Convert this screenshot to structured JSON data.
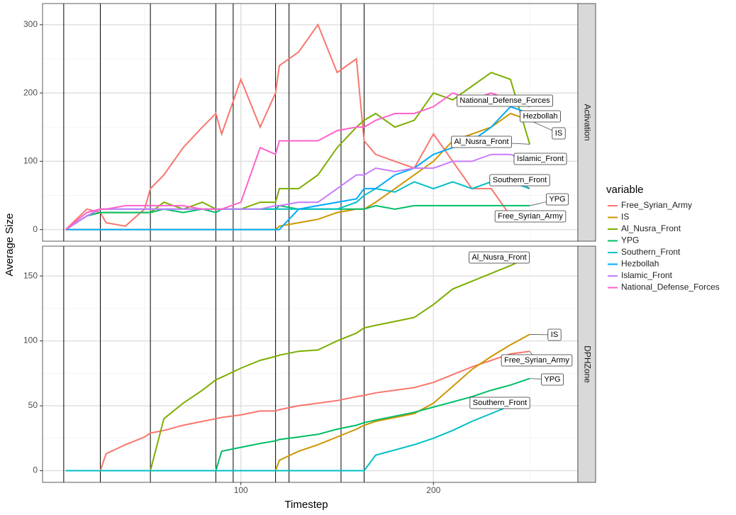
{
  "chart_data": {
    "type": "line",
    "x_label": "Timestep",
    "y_label": "Average Size",
    "legend_title": "variable",
    "x": [
      9,
      20,
      27,
      30,
      40,
      50,
      53,
      60,
      70,
      80,
      87,
      90,
      100,
      110,
      118,
      120,
      130,
      140,
      150,
      160,
      164,
      170,
      180,
      190,
      200,
      210,
      220,
      230,
      240,
      250
    ],
    "xlim": [
      -3,
      275
    ],
    "xticks": [
      100,
      200
    ],
    "x_minor_ticks": [
      50,
      150,
      250
    ],
    "vlines": [
      8,
      27,
      53,
      87,
      96,
      118,
      125,
      152,
      164
    ],
    "grid": true,
    "panels": [
      {
        "strip": "Activation",
        "ylim": [
          -17,
          331
        ],
        "yticks": [
          0,
          100,
          200,
          300
        ],
        "y_minor_ticks": [
          50,
          150,
          250
        ],
        "series": [
          {
            "name": "Free_Syrian_Army",
            "color": "#F8766D",
            "values": [
              0,
              30,
              25,
              10,
              5,
              30,
              60,
              80,
              120,
              150,
              170,
              140,
              220,
              150,
              200,
              240,
              260,
              300,
              230,
              250,
              130,
              110,
              100,
              90,
              140,
              100,
              60,
              60,
              20,
              20
            ]
          },
          {
            "name": "IS",
            "color": "#CD9600",
            "values": [
              0,
              0,
              0,
              0,
              0,
              0,
              0,
              0,
              0,
              0,
              0,
              0,
              0,
              0,
              0,
              5,
              10,
              15,
              25,
              30,
              30,
              40,
              60,
              80,
              100,
              130,
              140,
              150,
              170,
              160
            ]
          },
          {
            "name": "Al_Nusra_Front",
            "color": "#7CAE00",
            "values": [
              0,
              20,
              25,
              25,
              25,
              25,
              25,
              40,
              30,
              40,
              30,
              30,
              30,
              40,
              40,
              60,
              60,
              80,
              120,
              150,
              160,
              170,
              150,
              160,
              200,
              190,
              210,
              230,
              220,
              125
            ]
          },
          {
            "name": "YPG",
            "color": "#00BE67",
            "values": [
              0,
              20,
              25,
              25,
              25,
              25,
              25,
              30,
              25,
              30,
              25,
              30,
              30,
              30,
              30,
              35,
              30,
              30,
              30,
              30,
              30,
              35,
              30,
              35,
              35,
              35,
              35,
              35,
              35,
              35
            ]
          },
          {
            "name": "Southern_Front",
            "color": "#00BFC4",
            "values": [
              0,
              20,
              30,
              30,
              30,
              30,
              30,
              30,
              30,
              30,
              30,
              30,
              30,
              30,
              30,
              30,
              30,
              30,
              30,
              40,
              50,
              60,
              55,
              70,
              60,
              70,
              60,
              70,
              70,
              60
            ]
          },
          {
            "name": "Hezbollah",
            "color": "#00A9FF",
            "values": [
              0,
              0,
              0,
              0,
              0,
              0,
              0,
              0,
              0,
              0,
              0,
              0,
              0,
              0,
              0,
              0,
              30,
              35,
              40,
              45,
              60,
              60,
              80,
              90,
              110,
              120,
              130,
              150,
              180,
              170
            ]
          },
          {
            "name": "Islamic_Front",
            "color": "#C77CFF",
            "values": [
              0,
              20,
              30,
              30,
              30,
              30,
              30,
              30,
              30,
              30,
              30,
              30,
              30,
              30,
              35,
              35,
              40,
              40,
              60,
              80,
              80,
              90,
              85,
              90,
              90,
              100,
              100,
              110,
              110,
              100
            ]
          },
          {
            "name": "National_Defense_Forces",
            "color": "#FF61CC",
            "values": [
              0,
              25,
              30,
              30,
              35,
              35,
              35,
              35,
              35,
              30,
              30,
              30,
              40,
              120,
              110,
              130,
              130,
              130,
              145,
              150,
              150,
              160,
              170,
              170,
              180,
              200,
              190,
              200,
              190,
              180
            ]
          }
        ]
      },
      {
        "strip": "DPHZone",
        "ylim": [
          -9,
          173
        ],
        "yticks": [
          0,
          50,
          100,
          150
        ],
        "y_minor_ticks": [
          25,
          75,
          125
        ],
        "series": [
          {
            "name": "Free_Syrian_Army",
            "color": "#F8766D",
            "values": [
              0,
              0,
              0,
              13,
              20,
              26,
              29,
              31,
              35,
              38,
              40,
              41,
              43,
              46,
              46,
              47,
              50,
              52,
              54,
              57,
              58,
              60,
              62,
              64,
              68,
              74,
              80,
              85,
              90,
              92
            ]
          },
          {
            "name": "IS",
            "color": "#CD9600",
            "values": [
              0,
              0,
              0,
              0,
              0,
              0,
              0,
              0,
              0,
              0,
              0,
              0,
              0,
              0,
              0,
              8,
              15,
              20,
              26,
              32,
              35,
              38,
              41,
              44,
              52,
              65,
              78,
              88,
              97,
              105
            ]
          },
          {
            "name": "Al_Nusra_Front",
            "color": "#7CAE00",
            "values": [
              0,
              0,
              0,
              0,
              0,
              0,
              0,
              40,
              52,
              62,
              70,
              72,
              79,
              85,
              88,
              89,
              92,
              93,
              100,
              106,
              110,
              112,
              115,
              118,
              128,
              140,
              146,
              152,
              158,
              165
            ]
          },
          {
            "name": "YPG",
            "color": "#00BE67",
            "values": [
              0,
              0,
              0,
              0,
              0,
              0,
              0,
              0,
              0,
              0,
              0,
              15,
              18,
              21,
              23,
              24,
              26,
              28,
              32,
              35,
              37,
              39,
              42,
              45,
              49,
              53,
              57,
              62,
              66,
              71
            ]
          },
          {
            "name": "Southern_Front",
            "color": "#00BFC4",
            "values": [
              0,
              0,
              0,
              0,
              0,
              0,
              0,
              0,
              0,
              0,
              0,
              0,
              0,
              0,
              0,
              0,
              0,
              0,
              0,
              0,
              0,
              12,
              16,
              20,
              25,
              31,
              38,
              44,
              50,
              54
            ]
          }
        ]
      }
    ]
  }
}
